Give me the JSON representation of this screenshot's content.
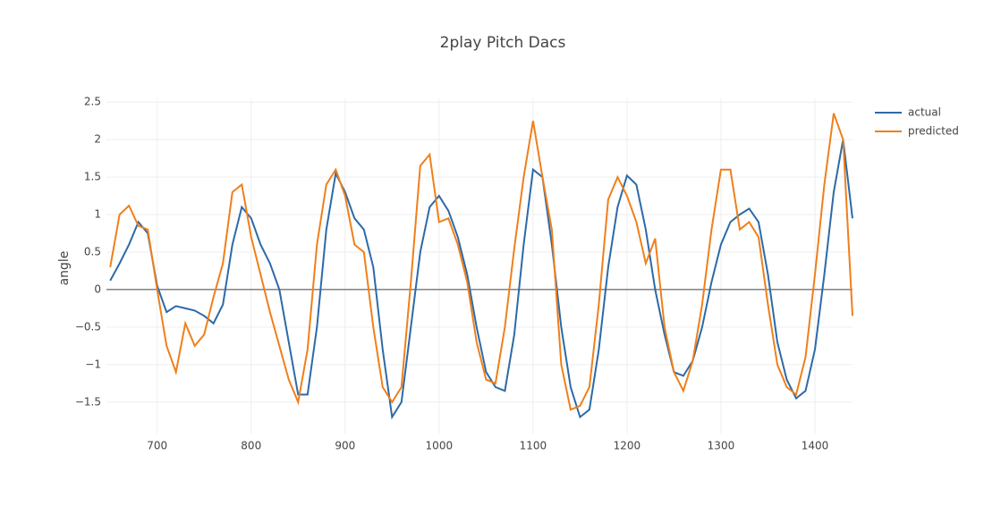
{
  "chart_data": {
    "type": "line",
    "title": "2play Pitch Dacs",
    "y_label": "angle",
    "x": [
      650,
      660,
      670,
      680,
      690,
      700,
      710,
      720,
      730,
      740,
      750,
      760,
      770,
      780,
      790,
      800,
      810,
      820,
      830,
      840,
      850,
      860,
      870,
      880,
      890,
      900,
      910,
      920,
      930,
      940,
      950,
      960,
      970,
      980,
      990,
      1000,
      1010,
      1020,
      1030,
      1040,
      1050,
      1060,
      1070,
      1080,
      1090,
      1100,
      1110,
      1120,
      1130,
      1140,
      1150,
      1160,
      1170,
      1180,
      1190,
      1200,
      1210,
      1220,
      1230,
      1240,
      1250,
      1260,
      1270,
      1280,
      1290,
      1300,
      1310,
      1320,
      1330,
      1340,
      1350,
      1360,
      1370,
      1380,
      1390,
      1400,
      1410,
      1420,
      1430,
      1440
    ],
    "series": [
      {
        "name": "actual",
        "color": "#2c6aa8",
        "values": [
          0.12,
          0.35,
          0.6,
          0.9,
          0.75,
          0.05,
          -0.3,
          -0.22,
          -0.25,
          -0.28,
          -0.35,
          -0.45,
          -0.2,
          0.6,
          1.1,
          0.95,
          0.6,
          0.35,
          0.0,
          -0.7,
          -1.4,
          -1.4,
          -0.5,
          0.8,
          1.55,
          1.3,
          0.95,
          0.8,
          0.3,
          -0.8,
          -1.7,
          -1.5,
          -0.5,
          0.5,
          1.1,
          1.25,
          1.05,
          0.7,
          0.2,
          -0.5,
          -1.1,
          -1.3,
          -1.35,
          -0.6,
          0.6,
          1.6,
          1.5,
          0.6,
          -0.5,
          -1.3,
          -1.7,
          -1.6,
          -0.8,
          0.3,
          1.1,
          1.52,
          1.4,
          0.8,
          0.0,
          -0.6,
          -1.1,
          -1.15,
          -0.95,
          -0.5,
          0.1,
          0.6,
          0.9,
          1.0,
          1.08,
          0.9,
          0.2,
          -0.7,
          -1.2,
          -1.45,
          -1.35,
          -0.8,
          0.2,
          1.3,
          2.0,
          0.95
        ]
      },
      {
        "name": "predicted",
        "color": "#f07f1a",
        "values": [
          0.3,
          1.0,
          1.12,
          0.85,
          0.8,
          0.0,
          -0.75,
          -1.1,
          -0.45,
          -0.75,
          -0.6,
          -0.1,
          0.35,
          1.3,
          1.4,
          0.7,
          0.2,
          -0.3,
          -0.75,
          -1.2,
          -1.5,
          -0.8,
          0.6,
          1.4,
          1.6,
          1.25,
          0.6,
          0.5,
          -0.5,
          -1.3,
          -1.5,
          -1.3,
          0.1,
          1.65,
          1.8,
          0.9,
          0.95,
          0.6,
          0.1,
          -0.7,
          -1.2,
          -1.25,
          -0.5,
          0.55,
          1.5,
          2.25,
          1.5,
          0.8,
          -1.0,
          -1.6,
          -1.55,
          -1.3,
          -0.2,
          1.2,
          1.5,
          1.25,
          0.9,
          0.35,
          0.68,
          -0.5,
          -1.1,
          -1.35,
          -0.95,
          -0.2,
          0.8,
          1.6,
          1.6,
          0.8,
          0.9,
          0.7,
          -0.2,
          -1.0,
          -1.3,
          -1.4,
          -0.9,
          0.2,
          1.4,
          2.35,
          2.0,
          -0.35
        ]
      }
    ],
    "xlim": [
      646,
      1440
    ],
    "ylim": [
      -1.92,
      2.55
    ],
    "xticks": [
      700,
      800,
      900,
      1000,
      1100,
      1200,
      1300,
      1400
    ],
    "yticks": [
      {
        "value": -1.5,
        "label": "−1.5"
      },
      {
        "value": -1,
        "label": "−1"
      },
      {
        "value": -0.5,
        "label": "−0.5"
      },
      0,
      0.5,
      1,
      1.5,
      2,
      2.5
    ],
    "grid": true,
    "legend": "right"
  }
}
